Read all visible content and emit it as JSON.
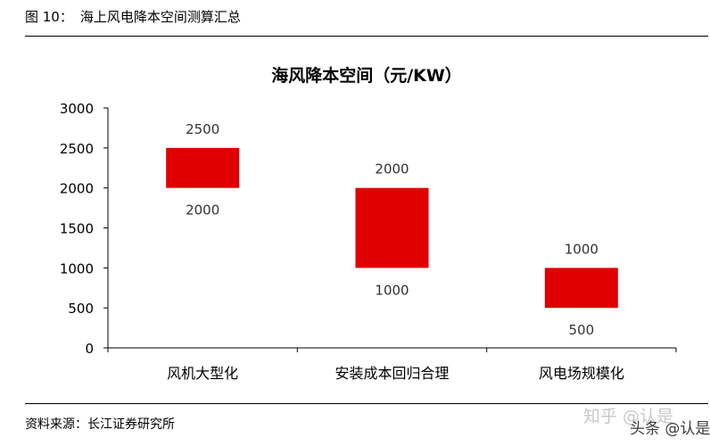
{
  "figure": {
    "label": "图 10：",
    "title": "海上风电降本空间测算汇总"
  },
  "chart_data": {
    "type": "bar",
    "subtype": "floating-range",
    "title": "海风降本空间（元/KW）",
    "xlabel": "",
    "ylabel": "",
    "ylim": [
      0,
      3000
    ],
    "yticks": [
      0,
      500,
      1000,
      1500,
      2000,
      2500,
      3000
    ],
    "categories": [
      "风机大型化",
      "安装成本回归合理",
      "风电场规模化"
    ],
    "low": [
      2000,
      1000,
      500
    ],
    "high": [
      2500,
      2000,
      1000
    ],
    "low_labels": [
      "2000",
      "1000",
      "500"
    ],
    "high_labels": [
      "2500",
      "2000",
      "1000"
    ],
    "bar_color": "#e00000",
    "grid": false,
    "legend": "none"
  },
  "footer": {
    "source": "资料来源：长江证券研究所",
    "watermark": "知乎 @认是",
    "credit": "头条 @认是"
  }
}
